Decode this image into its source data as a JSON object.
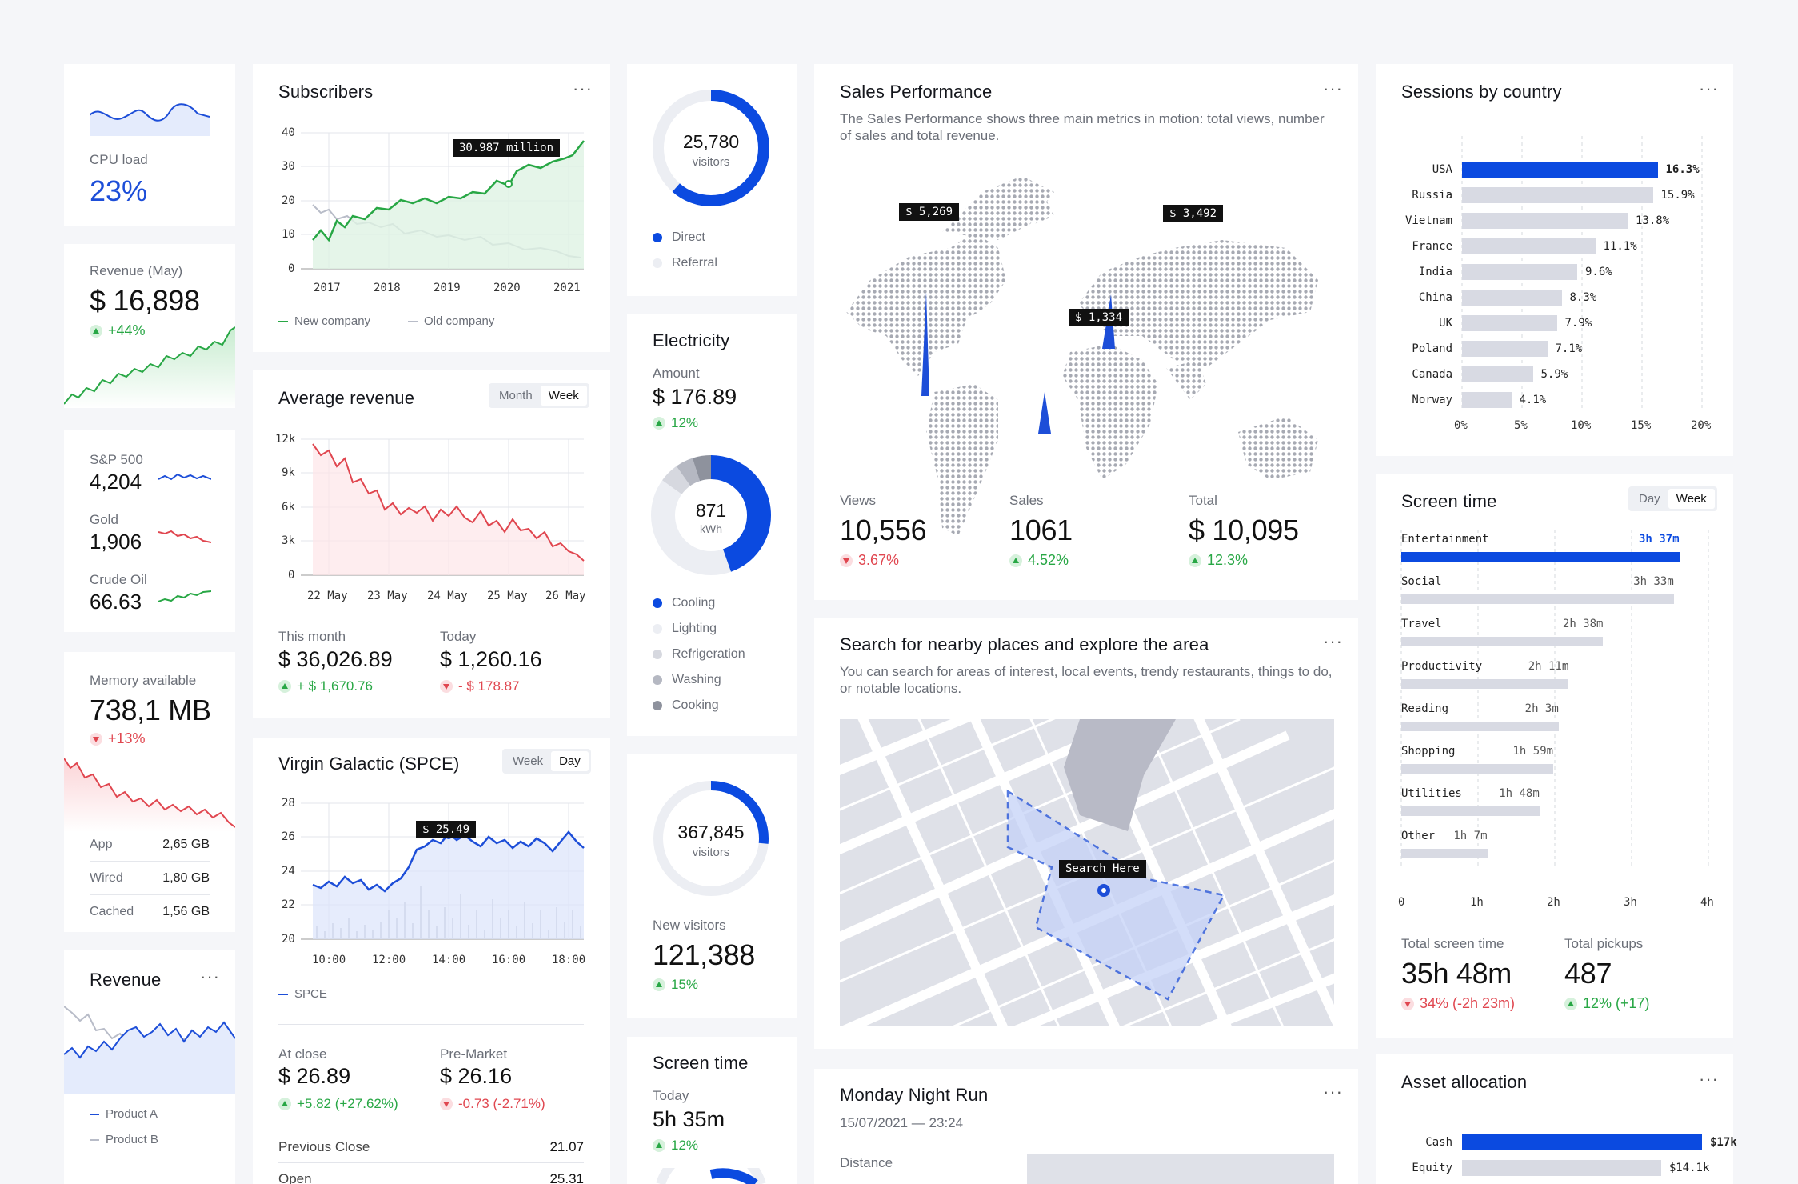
{
  "colors": {
    "accent": "#0b4ae0",
    "green": "#28a745",
    "red": "#e0464f",
    "grey": "#d8dae3"
  },
  "cpu": {
    "label": "CPU load",
    "value": "23%"
  },
  "revenue_may": {
    "label": "Revenue (May)",
    "value": "$ 16,898",
    "change": "+44%"
  },
  "markets": [
    {
      "label": "S&P 500",
      "value": "4,204"
    },
    {
      "label": "Gold",
      "value": "1,906"
    },
    {
      "label": "Crude Oil",
      "value": "66.63"
    }
  ],
  "memory": {
    "label": "Memory available",
    "value": "738,1 MB",
    "change": "+13%",
    "rows": [
      {
        "label": "App",
        "value": "2,65 GB"
      },
      {
        "label": "Wired",
        "value": "1,80 GB"
      },
      {
        "label": "Cached",
        "value": "1,56 GB"
      }
    ]
  },
  "revenue_small": {
    "title": "Revenue",
    "more": "···",
    "legend_a": "Product A",
    "legend_b": "Product B"
  },
  "subscribers": {
    "title": "Subscribers",
    "more": "···",
    "tooltip": "30.987 million",
    "yticks": [
      "40",
      "30",
      "20",
      "10",
      "0"
    ],
    "xticks": [
      "2017",
      "2018",
      "2019",
      "2020",
      "2021"
    ],
    "legend_new": "New company",
    "legend_old": "Old company"
  },
  "avg_revenue": {
    "title": "Average revenue",
    "seg": [
      "Month",
      "Week"
    ],
    "yticks": [
      "12k",
      "9k",
      "6k",
      "3k",
      "0"
    ],
    "xticks": [
      "22 May",
      "23 May",
      "24 May",
      "25 May",
      "26 May"
    ],
    "this_month_label": "This month",
    "this_month_value": "$ 36,026.89",
    "this_month_change": "+ $ 1,670.76",
    "today_label": "Today",
    "today_value": "$ 1,260.16",
    "today_change": "- $ 178.87"
  },
  "virgin": {
    "title": "Virgin Galactic (SPCE)",
    "seg": [
      "Week",
      "Day"
    ],
    "tooltip": "$ 25.49",
    "yticks": [
      "28",
      "26",
      "24",
      "22",
      "20"
    ],
    "xticks": [
      "10:00",
      "12:00",
      "14:00",
      "16:00",
      "18:00"
    ],
    "legend": "SPCE",
    "close_label": "At close",
    "close_value": "$ 26.89",
    "close_change": "+5.82 (+27.62%)",
    "pre_label": "Pre-Market",
    "pre_value": "$ 26.16",
    "pre_change": "-0.73 (-2.71%)",
    "prev_close_label": "Previous Close",
    "prev_close_value": "21.07",
    "open_label": "Open",
    "open_value": "25.31"
  },
  "visitors": {
    "value": "25,780",
    "unit": "visitors",
    "legend": [
      "Direct",
      "Referral"
    ]
  },
  "electricity": {
    "title": "Electricity",
    "amount_label": "Amount",
    "amount_value": "$ 176.89",
    "change": "12%",
    "donut_value": "871",
    "donut_unit": "kWh",
    "legend": [
      "Cooling",
      "Lighting",
      "Refrigeration",
      "Washing",
      "Cooking"
    ]
  },
  "new_visitors": {
    "donut_value": "367,845",
    "donut_unit": "visitors",
    "label": "New visitors",
    "value": "121,388",
    "change": "15%"
  },
  "screen_small": {
    "title": "Screen time",
    "today_label": "Today",
    "today_value": "5h 35m",
    "change": "12%"
  },
  "sales": {
    "title": "Sales Performance",
    "more": "···",
    "desc": "The Sales Performance shows three main metrics in motion: total views, number of sales and total revenue.",
    "tips": [
      "$ 5,269",
      "$ 3,492",
      "$ 1,334"
    ],
    "views_label": "Views",
    "views_value": "10,556",
    "views_change": "3.67%",
    "sales_label": "Sales",
    "sales_value": "1061",
    "sales_change": "4.52%",
    "total_label": "Total",
    "total_value": "$ 10,095",
    "total_change": "12.3%"
  },
  "search": {
    "title": "Search for nearby places and explore the area",
    "more": "···",
    "desc": "You can search for areas of interest, local events, trendy restaurants, things to do, or notable locations.",
    "pin_label": "Search Here"
  },
  "run": {
    "title": "Monday Night Run",
    "more": "···",
    "date": "15/07/2021 — 23:24",
    "distance_label": "Distance"
  },
  "sessions": {
    "title": "Sessions by country",
    "more": "···",
    "xticks": [
      "0%",
      "5%",
      "10%",
      "15%",
      "20%"
    ]
  },
  "screen_time": {
    "title": "Screen time",
    "seg": [
      "Day",
      "Week"
    ],
    "xticks": [
      "0",
      "1h",
      "2h",
      "3h",
      "4h"
    ],
    "total_label": "Total screen time",
    "total_value": "35h 48m",
    "total_change": "34% (-2h 23m)",
    "pickups_label": "Total pickups",
    "pickups_value": "487",
    "pickups_change": "12% (+17)"
  },
  "asset": {
    "title": "Asset allocation",
    "more": "···",
    "rows": [
      {
        "label": "Cash",
        "value": "$17k"
      },
      {
        "label": "Equity",
        "value": "$14.1k"
      }
    ]
  },
  "chart_data": [
    {
      "type": "bar",
      "title": "Sessions by country",
      "categories": [
        "USA",
        "Russia",
        "Vietnam",
        "France",
        "India",
        "China",
        "UK",
        "Poland",
        "Canada",
        "Norway"
      ],
      "values": [
        16.3,
        15.9,
        13.8,
        11.1,
        9.6,
        8.3,
        7.9,
        7.1,
        5.9,
        4.1
      ],
      "labels": [
        "16.3%",
        "15.9%",
        "13.8%",
        "11.1%",
        "9.6%",
        "8.3%",
        "7.9%",
        "7.1%",
        "5.9%",
        "4.1%"
      ],
      "xlim": [
        0,
        20
      ]
    },
    {
      "type": "bar",
      "title": "Screen time",
      "categories": [
        "Entertainment",
        "Social",
        "Travel",
        "Productivity",
        "Reading",
        "Shopping",
        "Utilities",
        "Other"
      ],
      "values": [
        3.62,
        3.55,
        2.63,
        2.18,
        2.05,
        1.98,
        1.8,
        1.12
      ],
      "labels": [
        "3h 37m",
        "3h 33m",
        "2h 38m",
        "2h 11m",
        "2h 3m",
        "1h 59m",
        "1h 48m",
        "1h 7m"
      ],
      "xlim": [
        0,
        4
      ]
    },
    {
      "type": "bar",
      "title": "Asset allocation",
      "categories": [
        "Cash",
        "Equity"
      ],
      "values": [
        17,
        14.1
      ],
      "labels": [
        "$17k",
        "$14.1k"
      ]
    },
    {
      "type": "line",
      "title": "Subscribers",
      "x": [
        2017,
        2018,
        2019,
        2020,
        2021
      ],
      "series": [
        {
          "name": "New company",
          "values": [
            12,
            20,
            22,
            30,
            38
          ]
        },
        {
          "name": "Old company",
          "values": [
            20,
            14,
            12,
            8,
            3
          ]
        }
      ],
      "ylim": [
        0,
        40
      ]
    },
    {
      "type": "line",
      "title": "Average revenue",
      "categories": [
        "22 May",
        "23 May",
        "24 May",
        "25 May",
        "26 May"
      ],
      "values": [
        10500,
        6500,
        4800,
        3800,
        1500
      ],
      "ylim": [
        0,
        12000
      ]
    },
    {
      "type": "line",
      "title": "Virgin Galactic (SPCE)",
      "categories": [
        "10:00",
        "12:00",
        "14:00",
        "16:00",
        "18:00"
      ],
      "values": [
        23.5,
        23.2,
        25.3,
        25.0,
        25.2
      ],
      "ylim": [
        20,
        28
      ]
    }
  ]
}
